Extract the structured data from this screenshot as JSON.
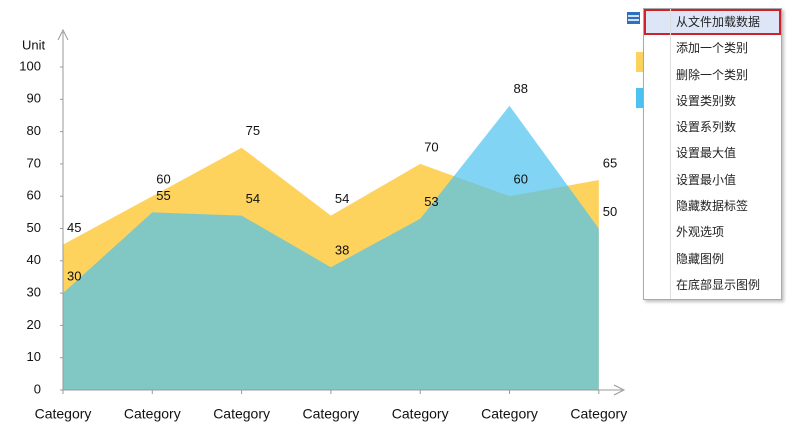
{
  "chart_data": {
    "type": "area",
    "y_label": "Unit",
    "categories": [
      "Category",
      "Category",
      "Category",
      "Category",
      "Category",
      "Category",
      "Category"
    ],
    "series": [
      {
        "color": "#fdd35e",
        "values": [
          45,
          60,
          75,
          54,
          70,
          60,
          65
        ]
      },
      {
        "color": "#4cc2f0",
        "values": [
          30,
          55,
          54,
          38,
          53,
          88,
          50
        ]
      }
    ],
    "ylim": [
      0,
      100
    ],
    "yticks": [
      0,
      10,
      20,
      30,
      40,
      50,
      60,
      70,
      80,
      90,
      100
    ],
    "grid": false
  },
  "menu": {
    "items": [
      "从文件加载数据",
      "添加一个类别",
      "删除一个类别",
      "设置类别数",
      "设置系列数",
      "设置最大值",
      "设置最小值",
      "隐藏数据标签",
      "外观选项",
      "隐藏图例",
      "在底部显示图例"
    ]
  }
}
